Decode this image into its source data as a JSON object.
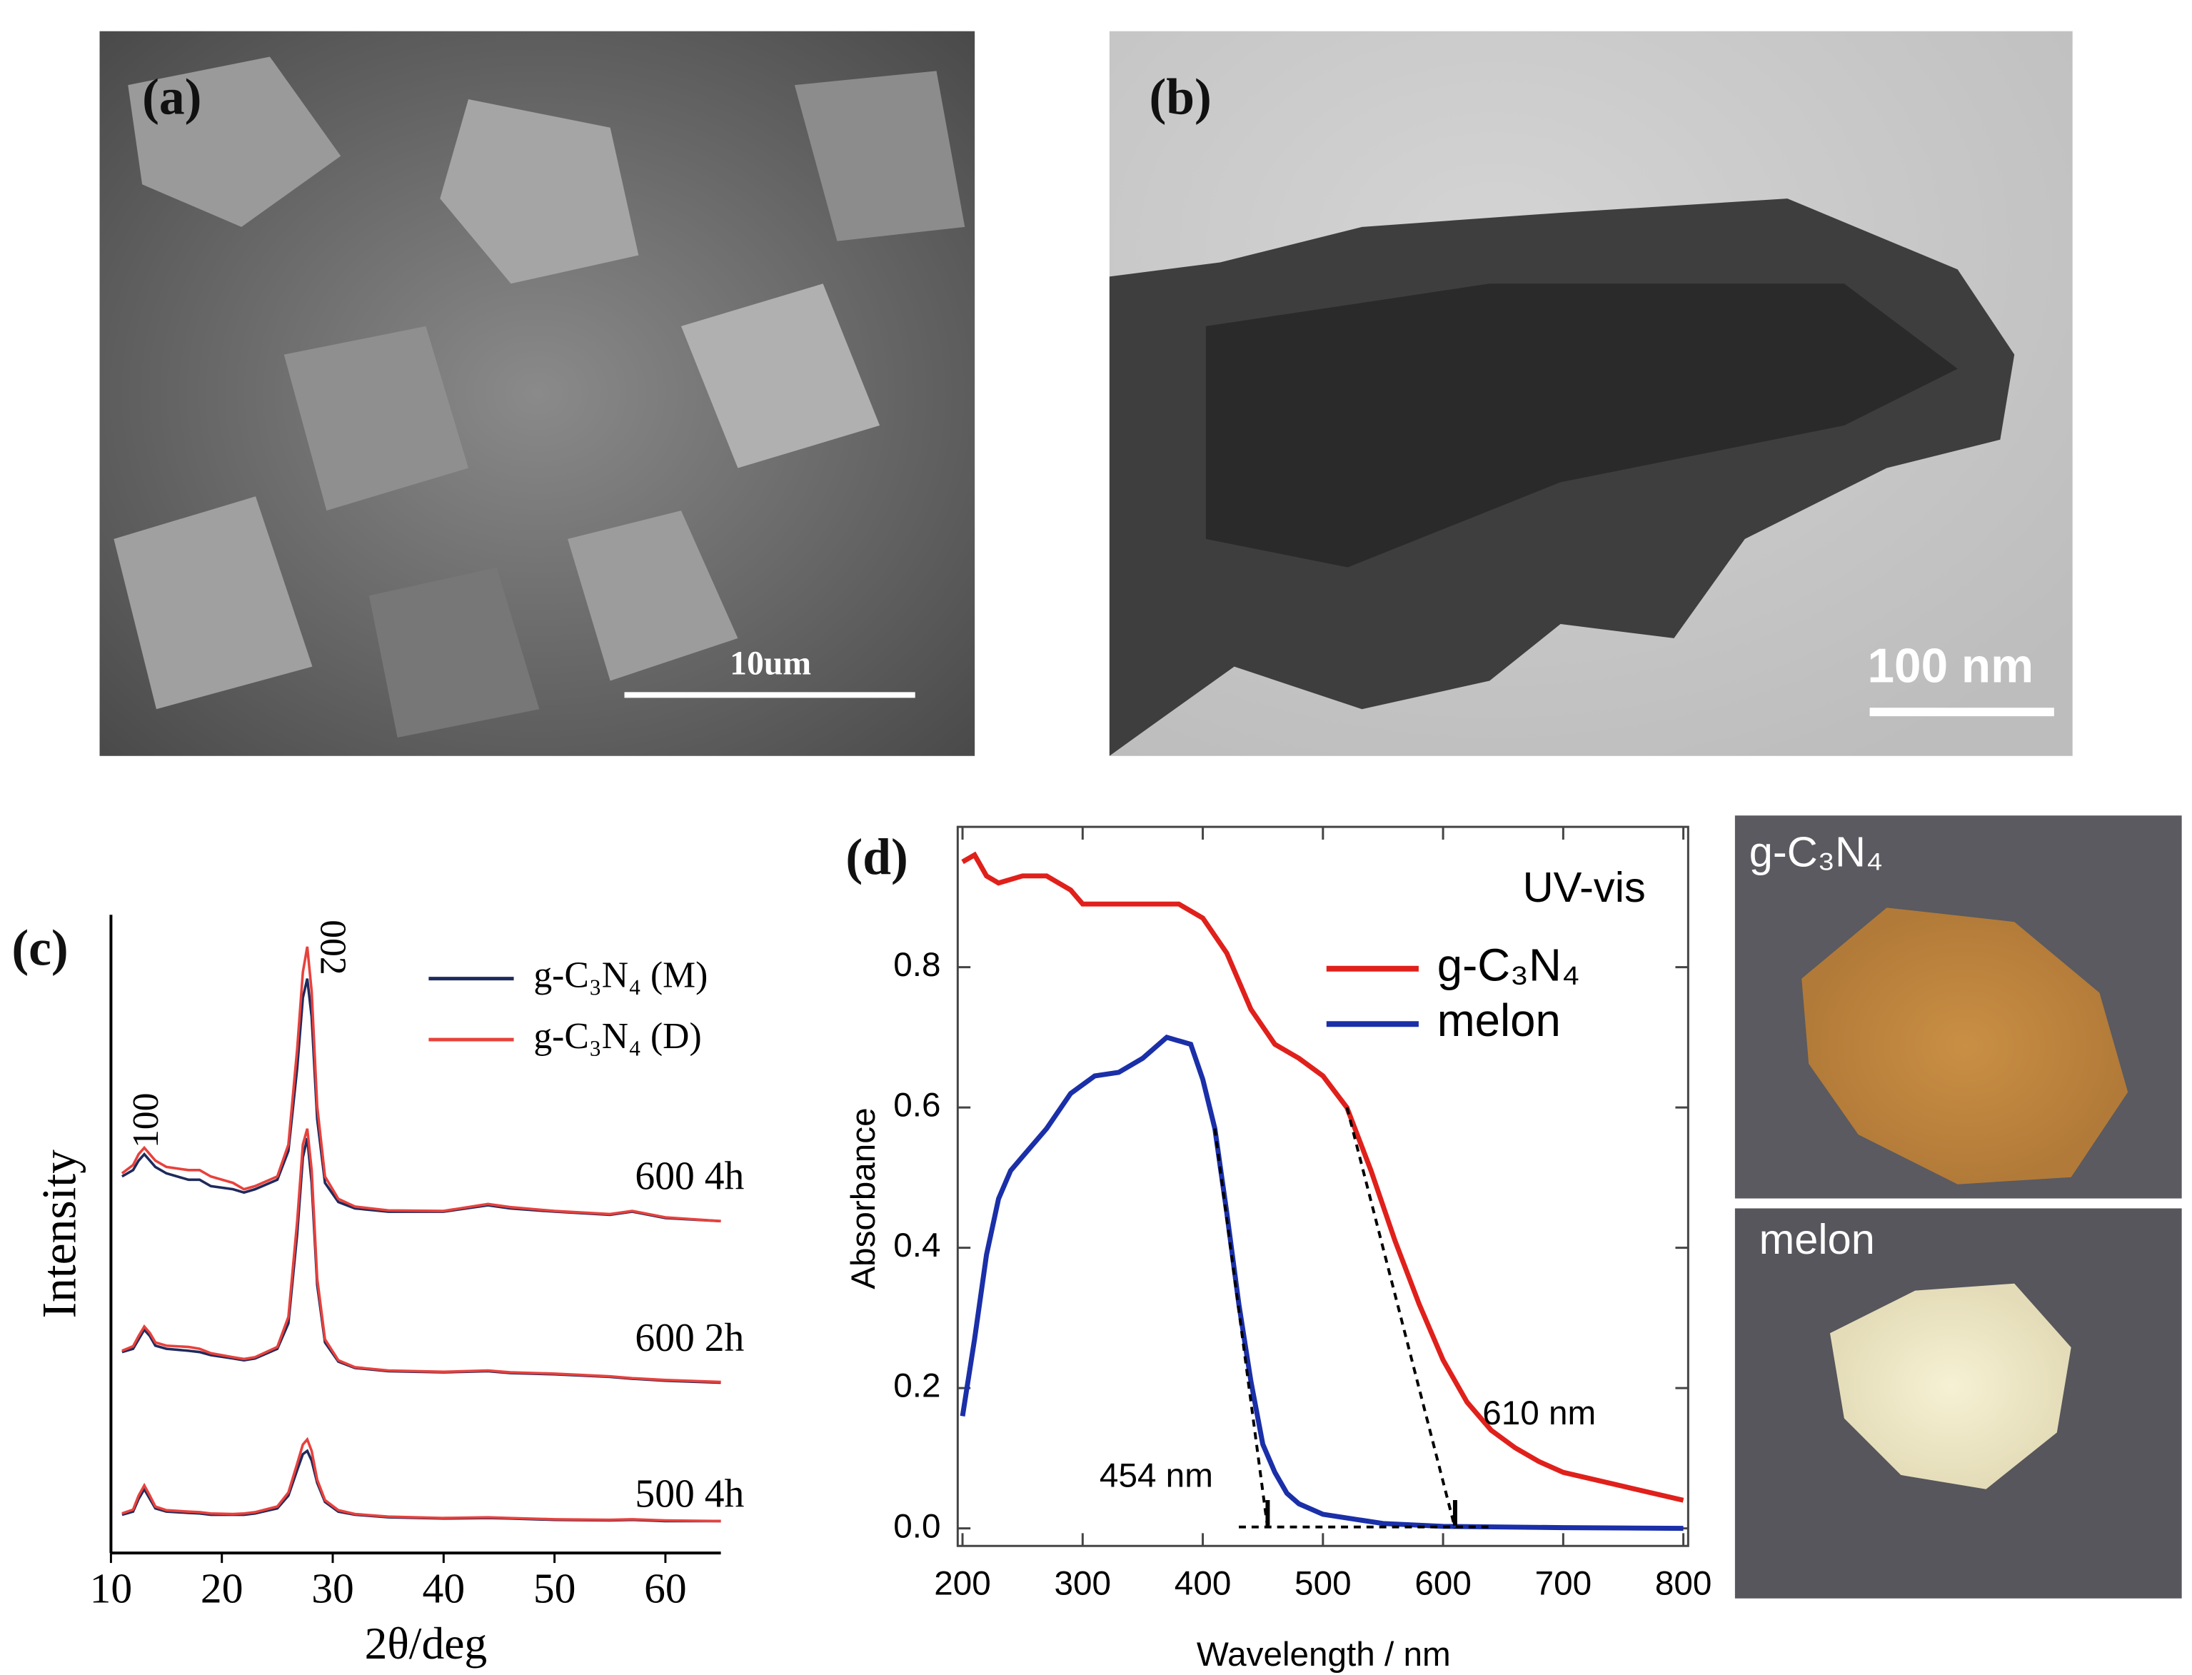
{
  "panels": {
    "a": {
      "label": "(a)",
      "scale_bar": "10um"
    },
    "b": {
      "label": "(b)",
      "scale_bar": "100 nm"
    },
    "photos": {
      "top": "g-C₃N₄",
      "bottom": "melon"
    }
  },
  "chart_data": [
    {
      "type": "line",
      "label": "(c)",
      "xlabel": "2θ/deg",
      "ylabel": "Intensity",
      "peak_labels": [
        "100",
        "002"
      ],
      "xlim": [
        10,
        65
      ],
      "ylim": [
        0,
        100
      ],
      "xticks": [
        10,
        20,
        30,
        40,
        50,
        60
      ],
      "series": [
        {
          "name": "g-C₃N₄ (M)",
          "color": "#1f2a5c"
        },
        {
          "name": "g-C₃N₄ (D)",
          "color": "#e8413c"
        }
      ],
      "x": [
        11,
        12,
        12.5,
        13,
        13.5,
        14,
        15,
        17,
        18,
        19,
        21,
        22,
        23,
        25,
        26,
        26.8,
        27.3,
        27.7,
        28.1,
        28.6,
        29.3,
        30.5,
        32,
        35,
        40,
        44,
        46,
        50,
        55,
        57,
        60,
        65
      ],
      "groups": [
        {
          "label": "600 4h",
          "values": [
            [
              59,
              60,
              61.5,
              62.5,
              61.5,
              60.5,
              59.5,
              58.5,
              58.5,
              57.5,
              57,
              56.5,
              57,
              58.5,
              63,
              76,
              87,
              90,
              84,
              68,
              58,
              55,
              54,
              53.5,
              53.5,
              54.5,
              54,
              53.5,
              53,
              53.5,
              52.5,
              52
            ],
            [
              59.5,
              60.8,
              62.5,
              63.5,
              62.5,
              61.5,
              60.5,
              60,
              60,
              59,
              58,
              57,
              57.5,
              59,
              64,
              79,
              91,
              95,
              88,
              70,
              59,
              55.5,
              54.3,
              53.7,
              53.6,
              54.7,
              54.2,
              53.6,
              53.1,
              53.6,
              52.6,
              52
            ]
          ]
        },
        {
          "label": "600 2h",
          "values": [
            [
              31.5,
              32,
              33.5,
              35,
              34,
              32.5,
              32,
              31.7,
              31.5,
              31,
              30.5,
              30.2,
              30.5,
              32,
              36,
              50,
              62,
              65,
              58,
              42,
              33,
              30,
              29,
              28.5,
              28.3,
              28.5,
              28.2,
              28,
              27.6,
              27.3,
              27,
              26.7
            ],
            [
              31.7,
              32.4,
              34,
              35.5,
              34.5,
              33,
              32.5,
              32.3,
              32,
              31.3,
              30.7,
              30.4,
              30.7,
              32.3,
              37,
              52,
              64,
              66.5,
              60,
              43,
              33.5,
              30.2,
              29.1,
              28.6,
              28.4,
              28.6,
              28.3,
              28.1,
              27.7,
              27.4,
              27.1,
              26.8
            ]
          ]
        },
        {
          "label": "500 4h",
          "values": [
            [
              6,
              6.5,
              8.5,
              10,
              8.5,
              7,
              6.5,
              6.3,
              6.2,
              6,
              6,
              6,
              6.2,
              7,
              9,
              13,
              15.5,
              16,
              14.5,
              11,
              8,
              6.5,
              6,
              5.6,
              5.4,
              5.5,
              5.4,
              5.2,
              5.1,
              5.2,
              5,
              5
            ],
            [
              6.2,
              6.8,
              9,
              10.6,
              9,
              7.3,
              6.7,
              6.5,
              6.4,
              6.2,
              6.1,
              6.2,
              6.4,
              7.3,
              9.5,
              14,
              17,
              17.8,
              16,
              11.5,
              8.3,
              6.7,
              6.1,
              5.7,
              5.5,
              5.6,
              5.5,
              5.3,
              5.2,
              5.3,
              5.1,
              5
            ]
          ]
        }
      ]
    },
    {
      "type": "line",
      "label": "(d)",
      "title": "UV-vis",
      "xlabel": "Wavelength / nm",
      "ylabel": "Absorbance",
      "xlim": [
        196,
        804
      ],
      "ylim": [
        -0.025,
        1.0
      ],
      "xticks": [
        200,
        300,
        400,
        500,
        600,
        700,
        800
      ],
      "yticks": [
        {
          "value": 0,
          "label": "0.0"
        },
        0.2,
        0.4,
        0.6,
        0.8
      ],
      "series": [
        {
          "name": "g-C₃N₄",
          "color": "#e0201b",
          "x": [
            200,
            210,
            220,
            230,
            250,
            270,
            290,
            300,
            320,
            350,
            380,
            400,
            420,
            440,
            460,
            480,
            500,
            520,
            540,
            560,
            580,
            600,
            620,
            640,
            660,
            680,
            700,
            750,
            800
          ],
          "values": [
            0.95,
            0.96,
            0.93,
            0.92,
            0.93,
            0.93,
            0.91,
            0.89,
            0.89,
            0.89,
            0.89,
            0.87,
            0.82,
            0.74,
            0.69,
            0.67,
            0.645,
            0.6,
            0.51,
            0.41,
            0.32,
            0.24,
            0.18,
            0.14,
            0.115,
            0.095,
            0.08,
            0.06,
            0.04
          ]
        },
        {
          "name": "melon",
          "color": "#1a2fa8",
          "x": [
            200,
            210,
            220,
            230,
            240,
            250,
            270,
            290,
            310,
            330,
            350,
            370,
            390,
            400,
            410,
            420,
            430,
            440,
            450,
            460,
            470,
            480,
            500,
            550,
            600,
            700,
            800
          ],
          "values": [
            0.16,
            0.27,
            0.39,
            0.47,
            0.51,
            0.53,
            0.57,
            0.62,
            0.645,
            0.65,
            0.67,
            0.7,
            0.69,
            0.64,
            0.57,
            0.45,
            0.32,
            0.21,
            0.12,
            0.08,
            0.05,
            0.035,
            0.02,
            0.007,
            0.003,
            0.001,
            0
          ]
        }
      ],
      "onsets": [
        {
          "value": 454,
          "label": "454 nm",
          "series": 1
        },
        {
          "value": 610,
          "label": "610 nm",
          "series": 0
        }
      ]
    }
  ]
}
